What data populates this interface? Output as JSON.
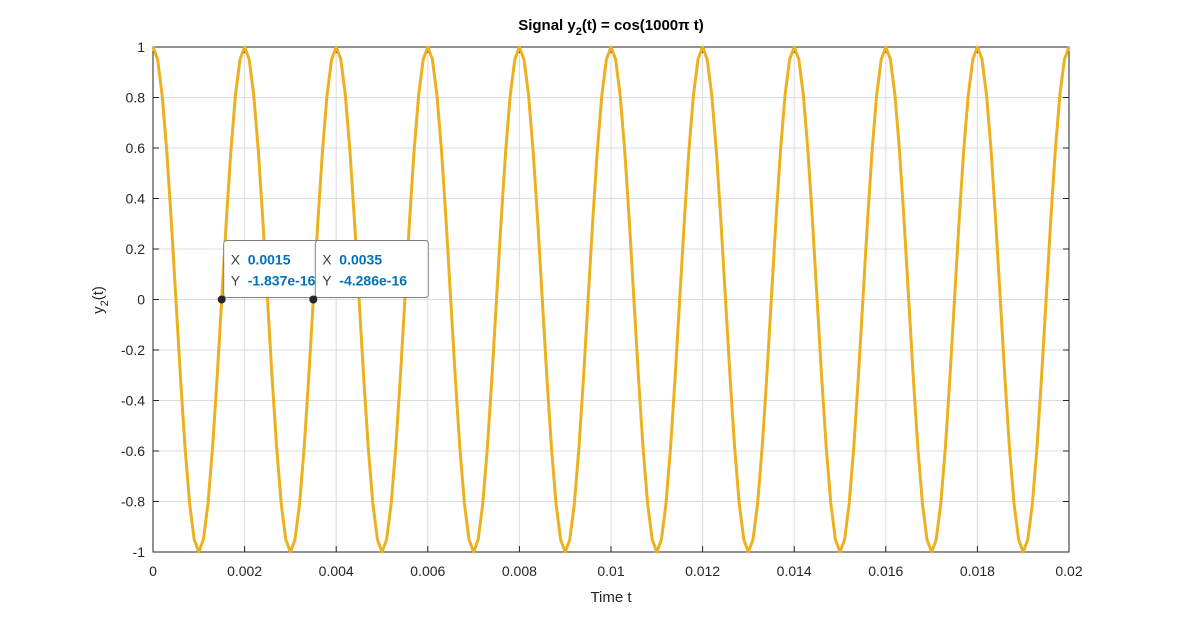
{
  "chart_data": {
    "type": "line",
    "title": "Signal y_2(t) = cos(1000π t)",
    "title_parts": {
      "prefix": "Signal y",
      "subscript": "2",
      "suffix": "(t) = cos(1000π t)"
    },
    "xlabel": "Time t",
    "ylabel_parts": {
      "prefix": "y",
      "subscript": "2",
      "suffix": "(t)"
    },
    "xlim": [
      0,
      0.02
    ],
    "ylim": [
      -1,
      1
    ],
    "x_ticks": [
      "0",
      "0.002",
      "0.004",
      "0.006",
      "0.008",
      "0.01",
      "0.012",
      "0.014",
      "0.016",
      "0.018",
      "0.02"
    ],
    "y_ticks": [
      "-1",
      "-0.8",
      "-0.6",
      "-0.4",
      "-0.2",
      "0",
      "0.2",
      "0.4",
      "0.6",
      "0.8",
      "1"
    ],
    "grid": true,
    "series": [
      {
        "color": "#EDB120",
        "function": "cos(1000π t)",
        "frequency_hz": 500,
        "sample_step": 0.0001,
        "x": [
          0,
          0.02
        ]
      }
    ],
    "datatips": [
      {
        "x": 0.0015,
        "y": -1.837e-16,
        "x_text": "0.0015",
        "y_text": "-1.837e-16"
      },
      {
        "x": 0.0035,
        "y": -4.286e-16,
        "x_text": "0.0035",
        "y_text": "-4.286e-16"
      }
    ],
    "datatip_labels": {
      "x": "X",
      "y": "Y"
    },
    "datatip_value_color": "#0072BD"
  }
}
